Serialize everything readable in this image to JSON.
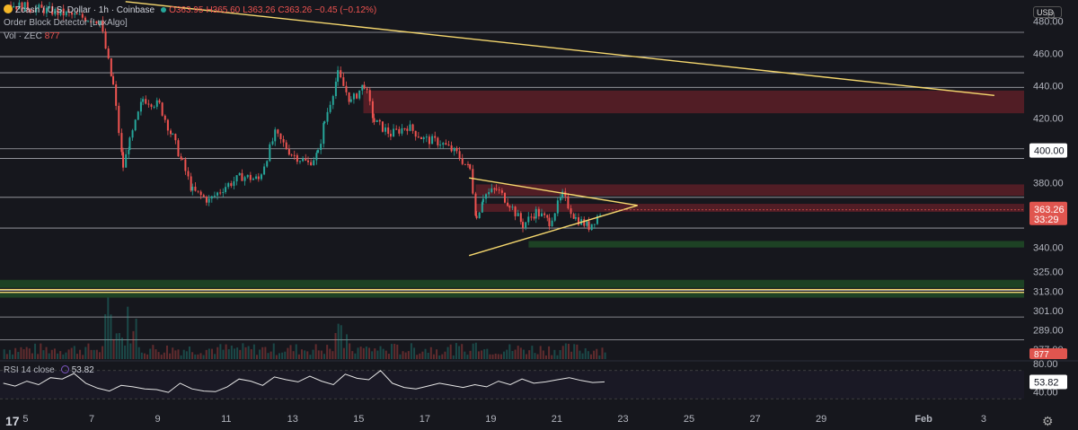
{
  "header": {
    "symbol": "Zcash / U.S. Dollar · 1h · Coinbase",
    "ohlc": {
      "o": "O363.95",
      "h": "H365.60",
      "l": "L363.26",
      "c": "C363.26",
      "chg": "−0.45 (−0.12%)"
    },
    "indicator": "Order Block Detector [LuxAlgo]",
    "vol_label": "Vol · ZEC",
    "vol_value": "877",
    "currency": "USD"
  },
  "rsi": {
    "label": "RSI 14 close",
    "value": "53.82"
  },
  "colors": {
    "background": "#16171d",
    "trendline": "#f5d76e",
    "bear_zone": "#5c1f27",
    "bull_zone": "#1f4a26",
    "up_candle": "#26a69a",
    "down_candle": "#ef5350",
    "price_badge": "#e0554f"
  },
  "chart_data": {
    "type": "candlestick",
    "price_axis": {
      "ticks": [
        "480.00",
        "460.00",
        "440.00",
        "420.00",
        "380.00",
        "340.00",
        "325.00",
        "313.00",
        "301.00",
        "289.00",
        "277.00"
      ],
      "highlighted_level": "400.00",
      "last_price": "363.26",
      "countdown": "33:29",
      "volume_badge": "877"
    },
    "rsi_axis": {
      "ticks": [
        "80.00",
        "40.00"
      ],
      "value_badge": "53.82"
    },
    "x_axis": {
      "ticks": [
        "5",
        "7",
        "9",
        "11",
        "13",
        "15",
        "17",
        "19",
        "21",
        "23",
        "25",
        "27",
        "29",
        "Feb",
        "3"
      ]
    },
    "horizontal_levels": [
      473,
      458,
      448,
      439,
      401,
      395,
      371,
      352,
      313.5,
      312.5,
      297,
      283
    ],
    "zones": [
      {
        "kind": "bearish",
        "from": 423,
        "to": 437,
        "start_day": 15.2
      },
      {
        "kind": "bearish",
        "from": 372,
        "to": 379,
        "start_day": 18.6
      },
      {
        "kind": "bearish",
        "from": 362,
        "to": 367,
        "start_day": 18.6
      },
      {
        "kind": "bullish",
        "from": 340,
        "to": 344,
        "start_day": 20.2
      },
      {
        "kind": "bullish",
        "from": 315,
        "to": 320,
        "start_day": 4
      },
      {
        "kind": "bullish",
        "from": 309,
        "to": 312,
        "start_day": 4
      }
    ],
    "trendlines": [
      {
        "from": [
          8,
          492
        ],
        "to": [
          34.3,
          434
        ]
      },
      {
        "from": [
          18.4,
          383
        ],
        "to": [
          23.5,
          366
        ]
      },
      {
        "from": [
          18.4,
          335
        ],
        "to": [
          23.5,
          366
        ]
      }
    ],
    "close_path": [
      [
        4.5,
        490
      ],
      [
        5.5,
        487
      ],
      [
        6.5,
        483
      ],
      [
        7.2,
        480
      ],
      [
        7.6,
        440
      ],
      [
        7.9,
        390
      ],
      [
        8.1,
        405
      ],
      [
        8.5,
        432
      ],
      [
        9,
        428
      ],
      [
        9.4,
        408
      ],
      [
        9.7,
        392
      ],
      [
        10,
        375
      ],
      [
        10.5,
        369
      ],
      [
        11,
        378
      ],
      [
        11.5,
        384
      ],
      [
        12,
        382
      ],
      [
        12.5,
        410
      ],
      [
        13,
        398
      ],
      [
        13.5,
        392
      ],
      [
        13.8,
        398
      ],
      [
        14,
        418
      ],
      [
        14.4,
        447
      ],
      [
        14.8,
        430
      ],
      [
        15.2,
        441
      ],
      [
        15.5,
        418
      ],
      [
        16,
        410
      ],
      [
        16.5,
        415
      ],
      [
        17,
        407
      ],
      [
        17.5,
        405
      ],
      [
        18,
        398
      ],
      [
        18.4,
        388
      ],
      [
        18.6,
        358
      ],
      [
        18.8,
        372
      ],
      [
        19.2,
        376
      ],
      [
        19.6,
        367
      ],
      [
        20,
        354
      ],
      [
        20.4,
        362
      ],
      [
        20.8,
        356
      ],
      [
        21.2,
        372
      ],
      [
        21.6,
        358
      ],
      [
        22,
        353
      ],
      [
        22.4,
        363
      ]
    ],
    "rsi_values": [
      52,
      48,
      55,
      50,
      60,
      58,
      66,
      52,
      45,
      41,
      49,
      47,
      44,
      43,
      39,
      52,
      44,
      41,
      40,
      47,
      58,
      55,
      49,
      61,
      57,
      54,
      62,
      55,
      50,
      65,
      59,
      57,
      70,
      52,
      46,
      44,
      48,
      52,
      49,
      46,
      50,
      47,
      55,
      50,
      58,
      52,
      54,
      57,
      60,
      56,
      53,
      54
    ],
    "rsi_range": [
      20,
      80
    ],
    "x_range_days": [
      4.2,
      35.2
    ],
    "price_range": [
      271,
      493
    ]
  }
}
